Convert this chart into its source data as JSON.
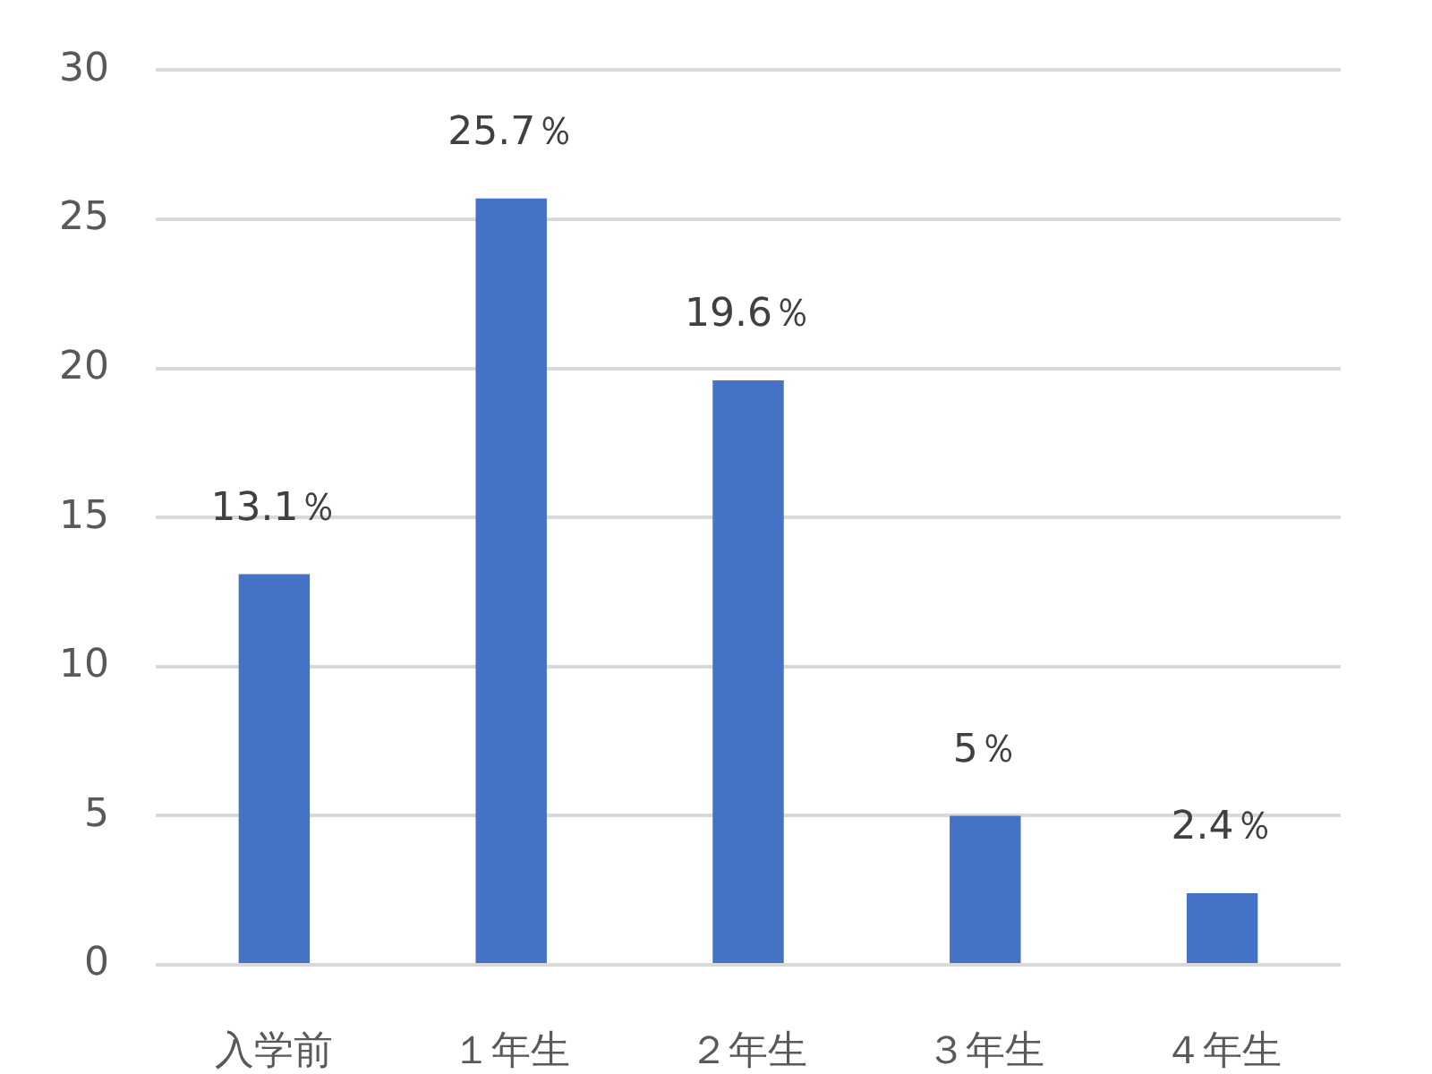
{
  "chart_data": {
    "type": "bar",
    "categories": [
      "入学前",
      "１年生",
      "２年生",
      "３年生",
      "４年生"
    ],
    "values": [
      13.1,
      25.7,
      19.6,
      5,
      2.4
    ],
    "value_labels": [
      "13.1％",
      "25.7％",
      "19.6％",
      "5％",
      "2.4％"
    ],
    "color": "#4472c4",
    "ylim": [
      0,
      30
    ],
    "yticks": [
      0,
      5,
      10,
      15,
      20,
      25,
      30
    ],
    "grid": "y"
  }
}
